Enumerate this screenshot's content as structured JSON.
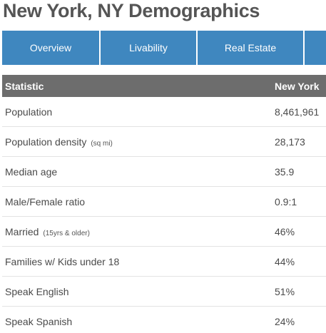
{
  "page": {
    "title": "New York, NY Demographics"
  },
  "tabs": [
    {
      "label": "Overview"
    },
    {
      "label": "Livability"
    },
    {
      "label": "Real Estate"
    },
    {
      "label": ""
    }
  ],
  "table": {
    "headers": {
      "statistic": "Statistic",
      "value": "New York"
    },
    "rows": [
      {
        "label": "Population",
        "note": "",
        "value": "8,461,961"
      },
      {
        "label": "Population density",
        "note": "(sq mi)",
        "value": "28,173"
      },
      {
        "label": "Median age",
        "note": "",
        "value": "35.9"
      },
      {
        "label": "Male/Female ratio",
        "note": "",
        "value": "0.9:1"
      },
      {
        "label": "Married",
        "note": "(15yrs & older)",
        "value": "46%"
      },
      {
        "label": "Families w/ Kids under 18",
        "note": "",
        "value": "44%"
      },
      {
        "label": "Speak English",
        "note": "",
        "value": "51%"
      },
      {
        "label": "Speak Spanish",
        "note": "",
        "value": "24%"
      }
    ]
  },
  "colors": {
    "tab_background": "#3f87bf",
    "header_background": "#6d6d6d",
    "title_text": "#555555"
  }
}
